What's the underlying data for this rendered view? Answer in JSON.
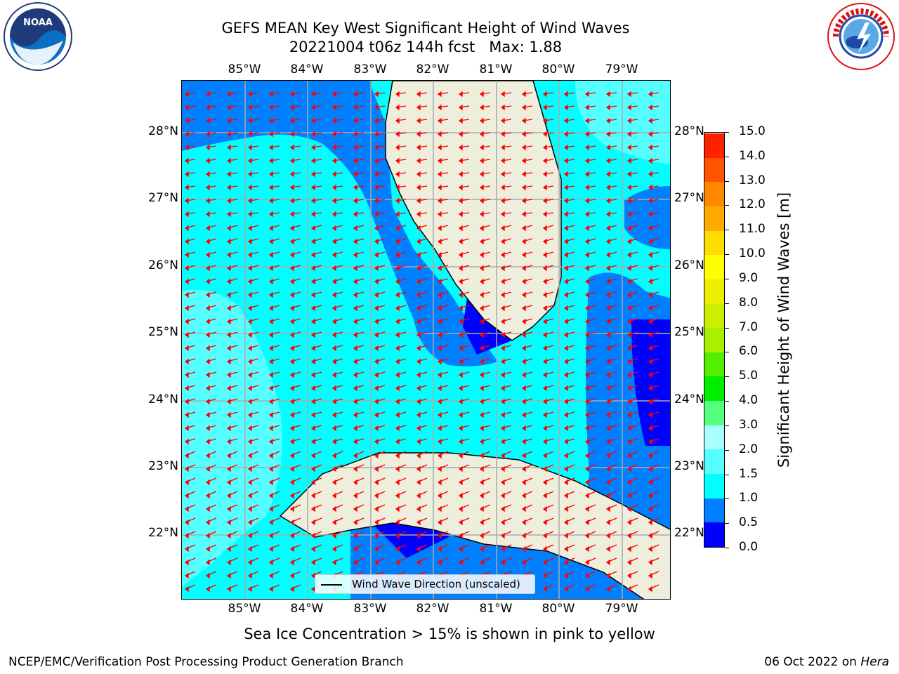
{
  "title": {
    "line1": "GEFS MEAN Key West Significant Height of Wind Waves",
    "line2": "20221004 t06z 144h fcst   Max: 1.88"
  },
  "map": {
    "lon_labels": [
      "85°W",
      "84°W",
      "83°W",
      "82°W",
      "81°W",
      "80°W",
      "79°W"
    ],
    "lat_labels": [
      "28°N",
      "27°N",
      "26°N",
      "25°N",
      "24°N",
      "23°N",
      "22°N"
    ],
    "legend_label": "Wind Wave Direction (unscaled)",
    "colors": {
      "land": "#eeeedd",
      "ocean_mid": "#00ffff",
      "ocean_light": "#55ffff",
      "ocean_low": "#0080ff",
      "ocean_lowest": "#0000ff",
      "arrows": "#ff0000"
    }
  },
  "colorbar": {
    "label": "Significant Height of Wind Waves [m]",
    "ticks": [
      "0.0",
      "0.5",
      "1.0",
      "1.5",
      "2.0",
      "3.0",
      "4.0",
      "5.0",
      "6.0",
      "7.0",
      "8.0",
      "9.0",
      "10.0",
      "11.0",
      "12.0",
      "13.0",
      "14.0",
      "15.0"
    ],
    "colors": [
      "#0000ff",
      "#0080ff",
      "#00ffff",
      "#55ffff",
      "#aaffff",
      "#55ff80",
      "#00ee00",
      "#55ee00",
      "#aaee00",
      "#ccee00",
      "#eeee00",
      "#ffff00",
      "#ffdd00",
      "#ffaa00",
      "#ff8800",
      "#ff5500",
      "#ff2200"
    ]
  },
  "caption": "Sea Ice Concentration > 15% is shown in pink to yellow",
  "footer": {
    "left": "NCEP/EMC/Verification Post Processing Product Generation Branch",
    "right_prefix": "06 Oct 2022 on ",
    "right_host": "Hera"
  }
}
